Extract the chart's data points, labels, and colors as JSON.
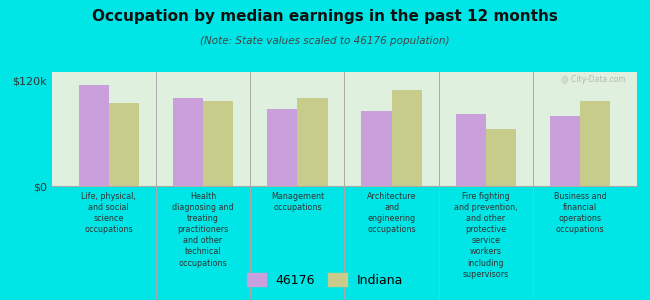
{
  "title": "Occupation by median earnings in the past 12 months",
  "subtitle": "(Note: State values scaled to 46176 population)",
  "background_color": "#00e5e5",
  "plot_bg_color": "#dff0df",
  "categories": [
    "Life, physical,\nand social\nscience\noccupations",
    "Health\ndiagnosing and\ntreating\npractitioners\nand other\ntechnical\noccupations",
    "Management\noccupations",
    "Architecture\nand\nengineering\noccupations",
    "Fire fighting\nand prevention,\nand other\nprotective\nservice\nworkers\nincluding\nsupervisors",
    "Business and\nfinancial\noperations\noccupations"
  ],
  "values_46176": [
    115000,
    100000,
    88000,
    85000,
    82000,
    80000
  ],
  "values_indiana": [
    95000,
    97000,
    100000,
    110000,
    65000,
    97000
  ],
  "color_46176": "#c9a0dc",
  "color_indiana": "#c8cc8a",
  "ylim": [
    0,
    130000
  ],
  "yticks": [
    0,
    120000
  ],
  "ytick_labels": [
    "$0",
    "$120k"
  ],
  "legend_label_1": "46176",
  "legend_label_2": "Indiana",
  "watermark": "@ City-Data.com"
}
